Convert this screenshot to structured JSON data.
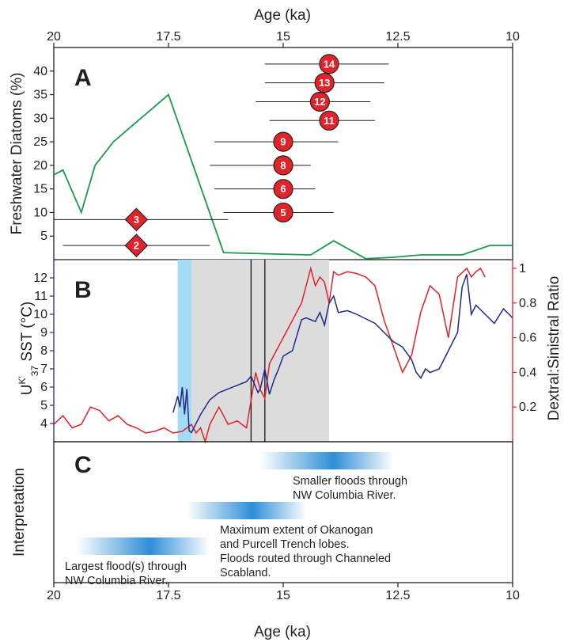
{
  "figure": {
    "top_axis_title": "Age (ka)",
    "bottom_axis_title": "Age (ka)",
    "x_ticks": [
      {
        "value": 20,
        "label": "20"
      },
      {
        "value": 17.5,
        "label": "17.5"
      },
      {
        "value": 15,
        "label": "15"
      },
      {
        "value": 12.5,
        "label": "12.5"
      },
      {
        "value": 10,
        "label": "10"
      }
    ]
  },
  "chart_data": [
    {
      "panel": "A",
      "type": "line",
      "letter": "A",
      "ylabel": "Freshwater Diatoms (%)",
      "xlim": [
        20,
        10
      ],
      "ylim": [
        0,
        45
      ],
      "yticks": [
        5,
        10,
        15,
        20,
        25,
        30,
        35,
        40
      ],
      "line_color": "#1a9a4a",
      "series": [
        {
          "x": [
            20,
            19.8,
            19.4,
            19.1,
            18.7,
            18.1,
            17.5,
            16.3,
            15.2,
            14.4,
            13.9,
            13.2,
            12.6,
            12.0,
            11.1,
            10.5,
            10.0
          ],
          "y": [
            18,
            19,
            10,
            20,
            25,
            30,
            35,
            1.5,
            1.2,
            1.0,
            4,
            0.2,
            0.5,
            1,
            1,
            3,
            3
          ]
        }
      ],
      "markers": [
        {
          "label": "14",
          "shape": "circle",
          "age": 14.0,
          "y": 41.5,
          "err_min": 12.7,
          "err_max": 15.4
        },
        {
          "label": "13",
          "shape": "circle",
          "age": 14.1,
          "y": 37.5,
          "err_min": 12.8,
          "err_max": 15.4
        },
        {
          "label": "12",
          "shape": "circle",
          "age": 14.2,
          "y": 33.5,
          "err_min": 13.1,
          "err_max": 15.6
        },
        {
          "label": "11",
          "shape": "circle",
          "age": 14.0,
          "y": 29.5,
          "err_min": 13.0,
          "err_max": 15.3
        },
        {
          "label": "9",
          "shape": "circle",
          "age": 15.0,
          "y": 25.0,
          "err_min": 13.8,
          "err_max": 16.5
        },
        {
          "label": "8",
          "shape": "circle",
          "age": 15.0,
          "y": 20.0,
          "err_min": 14.4,
          "err_max": 16.6
        },
        {
          "label": "6",
          "shape": "circle",
          "age": 15.0,
          "y": 15.0,
          "err_min": 14.3,
          "err_max": 16.5
        },
        {
          "label": "5",
          "shape": "circle",
          "age": 15.0,
          "y": 10.0,
          "err_min": 13.9,
          "err_max": 16.3
        },
        {
          "label": "3",
          "shape": "diamond",
          "age": 18.2,
          "y": 8.5,
          "err_min": 16.2,
          "err_max": 20.0
        },
        {
          "label": "2",
          "shape": "diamond",
          "age": 18.2,
          "y": 3.0,
          "err_min": 16.6,
          "err_max": 19.8
        }
      ]
    },
    {
      "panel": "B",
      "type": "line",
      "letter": "B",
      "ylabel_left_main": "U",
      "ylabel_left_sup": "K'",
      "ylabel_left_sub": "37",
      "ylabel_left_rest": " SST (°C)",
      "ylabel_right": "Dextral:Sinistral Ratio",
      "xlim": [
        20,
        10
      ],
      "ylim_left": [
        3,
        13
      ],
      "ylim_right": [
        0,
        1.05
      ],
      "yticks_left": [
        4,
        5,
        6,
        7,
        8,
        9,
        10,
        11,
        12
      ],
      "yticks_right": [
        {
          "value": 0.2,
          "label": "0.2"
        },
        {
          "value": 0.4,
          "label": "0.4"
        },
        {
          "value": 0.6,
          "label": "0.6"
        },
        {
          "value": 0.8,
          "label": "0.8"
        },
        {
          "value": 1.0,
          "label": "1"
        }
      ],
      "shaded_blue": [
        17.3,
        17.0
      ],
      "shaded_gray": [
        17.0,
        14.0
      ],
      "vertical_lines": [
        15.7,
        15.4
      ],
      "colors": {
        "sst": "#1f2a8a",
        "ratio": "#e0202a",
        "blue_band": "#a5dcf5",
        "gray_band": "#dcdcdd"
      },
      "series": [
        {
          "name": "",
          "axis": "left",
          "x": [
            17.4,
            17.3,
            17.25,
            17.2,
            17.15,
            17.1,
            17.05,
            17.0,
            16.9,
            16.8,
            16.6,
            16.4,
            16.0,
            15.8,
            15.7,
            15.55,
            15.5,
            15.4,
            15.3,
            15.2,
            15.1,
            15.0,
            14.8,
            14.6,
            14.5,
            14.3,
            14.2,
            14.1,
            14.0,
            13.9,
            13.8,
            13.6,
            13.4,
            13.0,
            12.6,
            12.4,
            12.2,
            12.1,
            12.0,
            11.9,
            11.8,
            11.6,
            11.4,
            11.2,
            11.1,
            11.0,
            10.9,
            10.8,
            10.6,
            10.4,
            10.2,
            10.0
          ],
          "y": [
            4.6,
            5.5,
            4.9,
            6.0,
            4.5,
            5.9,
            3.6,
            3.5,
            4.0,
            4.5,
            5.3,
            5.7,
            6.1,
            6.3,
            6.6,
            5.7,
            5.9,
            7.0,
            5.6,
            6.4,
            7.0,
            7.7,
            8.0,
            9.7,
            9.8,
            9.6,
            10.1,
            9.4,
            10.6,
            11.0,
            10.1,
            10.2,
            10.0,
            9.5,
            8.5,
            8.2,
            7.5,
            6.8,
            6.5,
            7.0,
            6.8,
            7.0,
            8.0,
            9.0,
            11.5,
            12.2,
            10.0,
            10.5,
            10.0,
            9.5,
            10.3,
            9.8
          ]
        },
        {
          "name": "",
          "axis": "right",
          "x": [
            20.0,
            19.8,
            19.6,
            19.4,
            19.2,
            19.0,
            18.8,
            18.6,
            18.4,
            18.2,
            18.0,
            17.8,
            17.6,
            17.4,
            17.2,
            17.0,
            16.9,
            16.8,
            16.7,
            16.6,
            16.4,
            16.2,
            16.0,
            15.9,
            15.8,
            15.6,
            15.5,
            15.4,
            15.3,
            15.2,
            15.0,
            14.8,
            14.6,
            14.4,
            14.3,
            14.2,
            14.1,
            14.0,
            13.9,
            13.8,
            13.6,
            13.4,
            13.2,
            13.0,
            12.8,
            12.6,
            12.4,
            12.2,
            12.0,
            11.8,
            11.6,
            11.4,
            11.2,
            11.0,
            10.9,
            10.8,
            10.7,
            10.6
          ],
          "y": [
            0.1,
            0.15,
            0.08,
            0.1,
            0.2,
            0.18,
            0.12,
            0.15,
            0.1,
            0.08,
            0.05,
            0.06,
            0.08,
            0.05,
            0.06,
            0.1,
            0.05,
            0.08,
            0.0,
            0.1,
            0.2,
            0.1,
            0.12,
            0.1,
            0.08,
            0.4,
            0.3,
            0.25,
            0.45,
            0.5,
            0.6,
            0.7,
            0.8,
            1.0,
            0.9,
            0.95,
            0.92,
            0.8,
            0.98,
            0.96,
            0.98,
            0.97,
            0.95,
            0.9,
            0.7,
            0.55,
            0.4,
            0.5,
            0.75,
            0.9,
            0.85,
            0.6,
            0.95,
            1.0,
            0.95,
            0.98,
            1.0,
            0.95
          ]
        }
      ]
    },
    {
      "panel": "C",
      "type": "table",
      "letter": "C",
      "ylabel": "Interpretation",
      "xlim": [
        20,
        10
      ],
      "bars": [
        {
          "x_start": 15.5,
          "x_end": 12.6,
          "line1": "Smaller floods through",
          "line2": "NW Columbia River.",
          "line3": "",
          "line4": ""
        },
        {
          "x_start": 17.1,
          "x_end": 14.5,
          "line1": "Maximum extent of Okanogan",
          "line2": "and Purcell Trench lobes.",
          "line3": "Floods routed through Channeled",
          "line4": "Scabland."
        },
        {
          "x_start": 19.5,
          "x_end": 16.6,
          "line1": "Largest flood(s) through",
          "line2": "NW Columbia River.",
          "line3": "",
          "line4": ""
        }
      ]
    }
  ]
}
